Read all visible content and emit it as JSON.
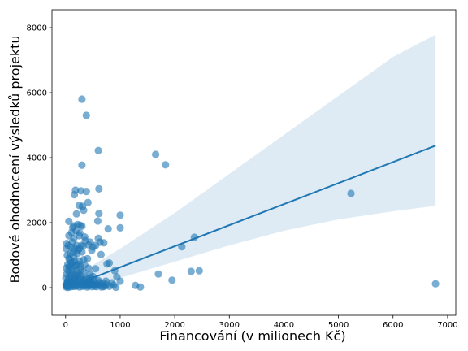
{
  "chart_data": {
    "type": "scatter",
    "title": "",
    "xlabel": "Financování (v milionech Kč)",
    "ylabel": "Bodové ohodnocení výsledků projektu",
    "xlim": [
      -250,
      7150
    ],
    "ylim": [
      -850,
      8550
    ],
    "xticks": [
      0,
      1000,
      2000,
      3000,
      4000,
      5000,
      6000,
      7000
    ],
    "yticks": [
      0,
      2000,
      4000,
      6000,
      8000
    ],
    "colors": {
      "points": "#1f77b4",
      "line": "#1f77b4",
      "band": "#1f77b4"
    },
    "grid": false,
    "legend": "none",
    "regression": {
      "x": [
        0,
        6780
      ],
      "y": [
        -20,
        4370
      ]
    },
    "confidence_band": {
      "x": [
        0,
        500,
        1000,
        2000,
        3000,
        4000,
        5000,
        6000,
        6780
      ],
      "upper": [
        100,
        700,
        1200,
        2300,
        3500,
        4700,
        5900,
        7100,
        7780
      ],
      "lower": [
        -120,
        20,
        300,
        800,
        1300,
        1750,
        2100,
        2350,
        2520
      ]
    },
    "points": [
      [
        300,
        5800
      ],
      [
        380,
        5300
      ],
      [
        600,
        4220
      ],
      [
        1650,
        4100
      ],
      [
        1830,
        3780
      ],
      [
        300,
        3770
      ],
      [
        180,
        3000
      ],
      [
        280,
        2980
      ],
      [
        380,
        2960
      ],
      [
        610,
        3040
      ],
      [
        160,
        2860
      ],
      [
        310,
        2500
      ],
      [
        250,
        2530
      ],
      [
        330,
        2380
      ],
      [
        410,
        2620
      ],
      [
        610,
        2280
      ],
      [
        1000,
        2230
      ],
      [
        590,
        2050
      ],
      [
        200,
        2270
      ],
      [
        60,
        2040
      ],
      [
        780,
        1810
      ],
      [
        1000,
        1840
      ],
      [
        130,
        1850
      ],
      [
        220,
        1940
      ],
      [
        270,
        1920
      ],
      [
        300,
        1890
      ],
      [
        250,
        1600
      ],
      [
        350,
        1560
      ],
      [
        150,
        1520
      ],
      [
        2360,
        1550
      ],
      [
        2130,
        1260
      ],
      [
        5230,
        2900
      ],
      [
        6780,
        120
      ],
      [
        600,
        1520
      ],
      [
        630,
        1400
      ],
      [
        700,
        1380
      ],
      [
        450,
        1400
      ],
      [
        500,
        1250
      ],
      [
        550,
        1300
      ],
      [
        650,
        1020
      ],
      [
        800,
        760
      ],
      [
        760,
        730
      ],
      [
        400,
        890
      ],
      [
        300,
        1100
      ],
      [
        200,
        1300
      ],
      [
        100,
        1250
      ],
      [
        50,
        1300
      ],
      [
        140,
        1100
      ],
      [
        30,
        1000
      ],
      [
        900,
        520
      ],
      [
        940,
        330
      ],
      [
        1000,
        200
      ],
      [
        1700,
        420
      ],
      [
        1950,
        230
      ],
      [
        2300,
        500
      ],
      [
        2450,
        520
      ],
      [
        1280,
        70
      ],
      [
        1370,
        20
      ],
      [
        850,
        150
      ],
      [
        750,
        100
      ],
      [
        650,
        60
      ],
      [
        700,
        30
      ],
      [
        600,
        220
      ],
      [
        500,
        340
      ],
      [
        450,
        410
      ],
      [
        420,
        600
      ],
      [
        550,
        580
      ],
      [
        350,
        700
      ],
      [
        250,
        820
      ],
      [
        150,
        950
      ],
      [
        100,
        760
      ],
      [
        60,
        640
      ],
      [
        200,
        500
      ],
      [
        120,
        560
      ],
      [
        170,
        650
      ],
      [
        280,
        560
      ],
      [
        330,
        480
      ],
      [
        380,
        300
      ],
      [
        240,
        330
      ],
      [
        180,
        260
      ],
      [
        140,
        200
      ],
      [
        90,
        360
      ],
      [
        60,
        280
      ],
      [
        40,
        220
      ],
      [
        30,
        160
      ],
      [
        20,
        100
      ],
      [
        15,
        50
      ],
      [
        10,
        20
      ],
      [
        70,
        120
      ],
      [
        110,
        80
      ],
      [
        160,
        130
      ],
      [
        210,
        60
      ],
      [
        260,
        120
      ],
      [
        310,
        40
      ],
      [
        360,
        110
      ],
      [
        410,
        60
      ],
      [
        460,
        150
      ],
      [
        510,
        80
      ],
      [
        560,
        120
      ],
      [
        480,
        30
      ],
      [
        430,
        200
      ],
      [
        520,
        240
      ],
      [
        20,
        420
      ],
      [
        45,
        520
      ],
      [
        80,
        460
      ],
      [
        130,
        420
      ],
      [
        190,
        380
      ],
      [
        230,
        440
      ],
      [
        270,
        380
      ],
      [
        320,
        250
      ],
      [
        40,
        720
      ],
      [
        80,
        860
      ],
      [
        120,
        780
      ],
      [
        160,
        820
      ],
      [
        100,
        640
      ],
      [
        60,
        900
      ],
      [
        190,
        700
      ],
      [
        230,
        720
      ],
      [
        280,
        650
      ],
      [
        330,
        860
      ],
      [
        10,
        1200
      ],
      [
        90,
        1050
      ],
      [
        210,
        1050
      ],
      [
        250,
        1200
      ],
      [
        60,
        1600
      ],
      [
        120,
        1400
      ],
      [
        170,
        1200
      ],
      [
        220,
        1150
      ],
      [
        290,
        1300
      ],
      [
        360,
        1450
      ],
      [
        420,
        1320
      ],
      [
        480,
        1150
      ],
      [
        110,
        1700
      ],
      [
        150,
        1900
      ],
      [
        190,
        1750
      ],
      [
        260,
        1680
      ],
      [
        320,
        1280
      ],
      [
        20,
        1360
      ],
      [
        5,
        300
      ],
      [
        8,
        80
      ],
      [
        12,
        600
      ],
      [
        25,
        40
      ],
      [
        35,
        160
      ],
      [
        50,
        10
      ],
      [
        65,
        60
      ],
      [
        85,
        190
      ],
      [
        95,
        30
      ],
      [
        115,
        270
      ],
      [
        135,
        40
      ],
      [
        145,
        100
      ],
      [
        165,
        320
      ],
      [
        175,
        40
      ],
      [
        195,
        160
      ],
      [
        215,
        220
      ],
      [
        235,
        90
      ],
      [
        255,
        20
      ],
      [
        275,
        260
      ],
      [
        295,
        160
      ],
      [
        315,
        90
      ],
      [
        335,
        180
      ],
      [
        345,
        60
      ],
      [
        365,
        250
      ],
      [
        385,
        150
      ],
      [
        395,
        20
      ],
      [
        415,
        120
      ],
      [
        435,
        70
      ],
      [
        445,
        290
      ],
      [
        465,
        200
      ],
      [
        490,
        100
      ],
      [
        530,
        40
      ],
      [
        570,
        30
      ],
      [
        590,
        90
      ],
      [
        620,
        160
      ],
      [
        660,
        20
      ],
      [
        680,
        140
      ],
      [
        720,
        60
      ],
      [
        740,
        200
      ],
      [
        800,
        40
      ],
      [
        880,
        80
      ],
      [
        920,
        10
      ]
    ]
  }
}
